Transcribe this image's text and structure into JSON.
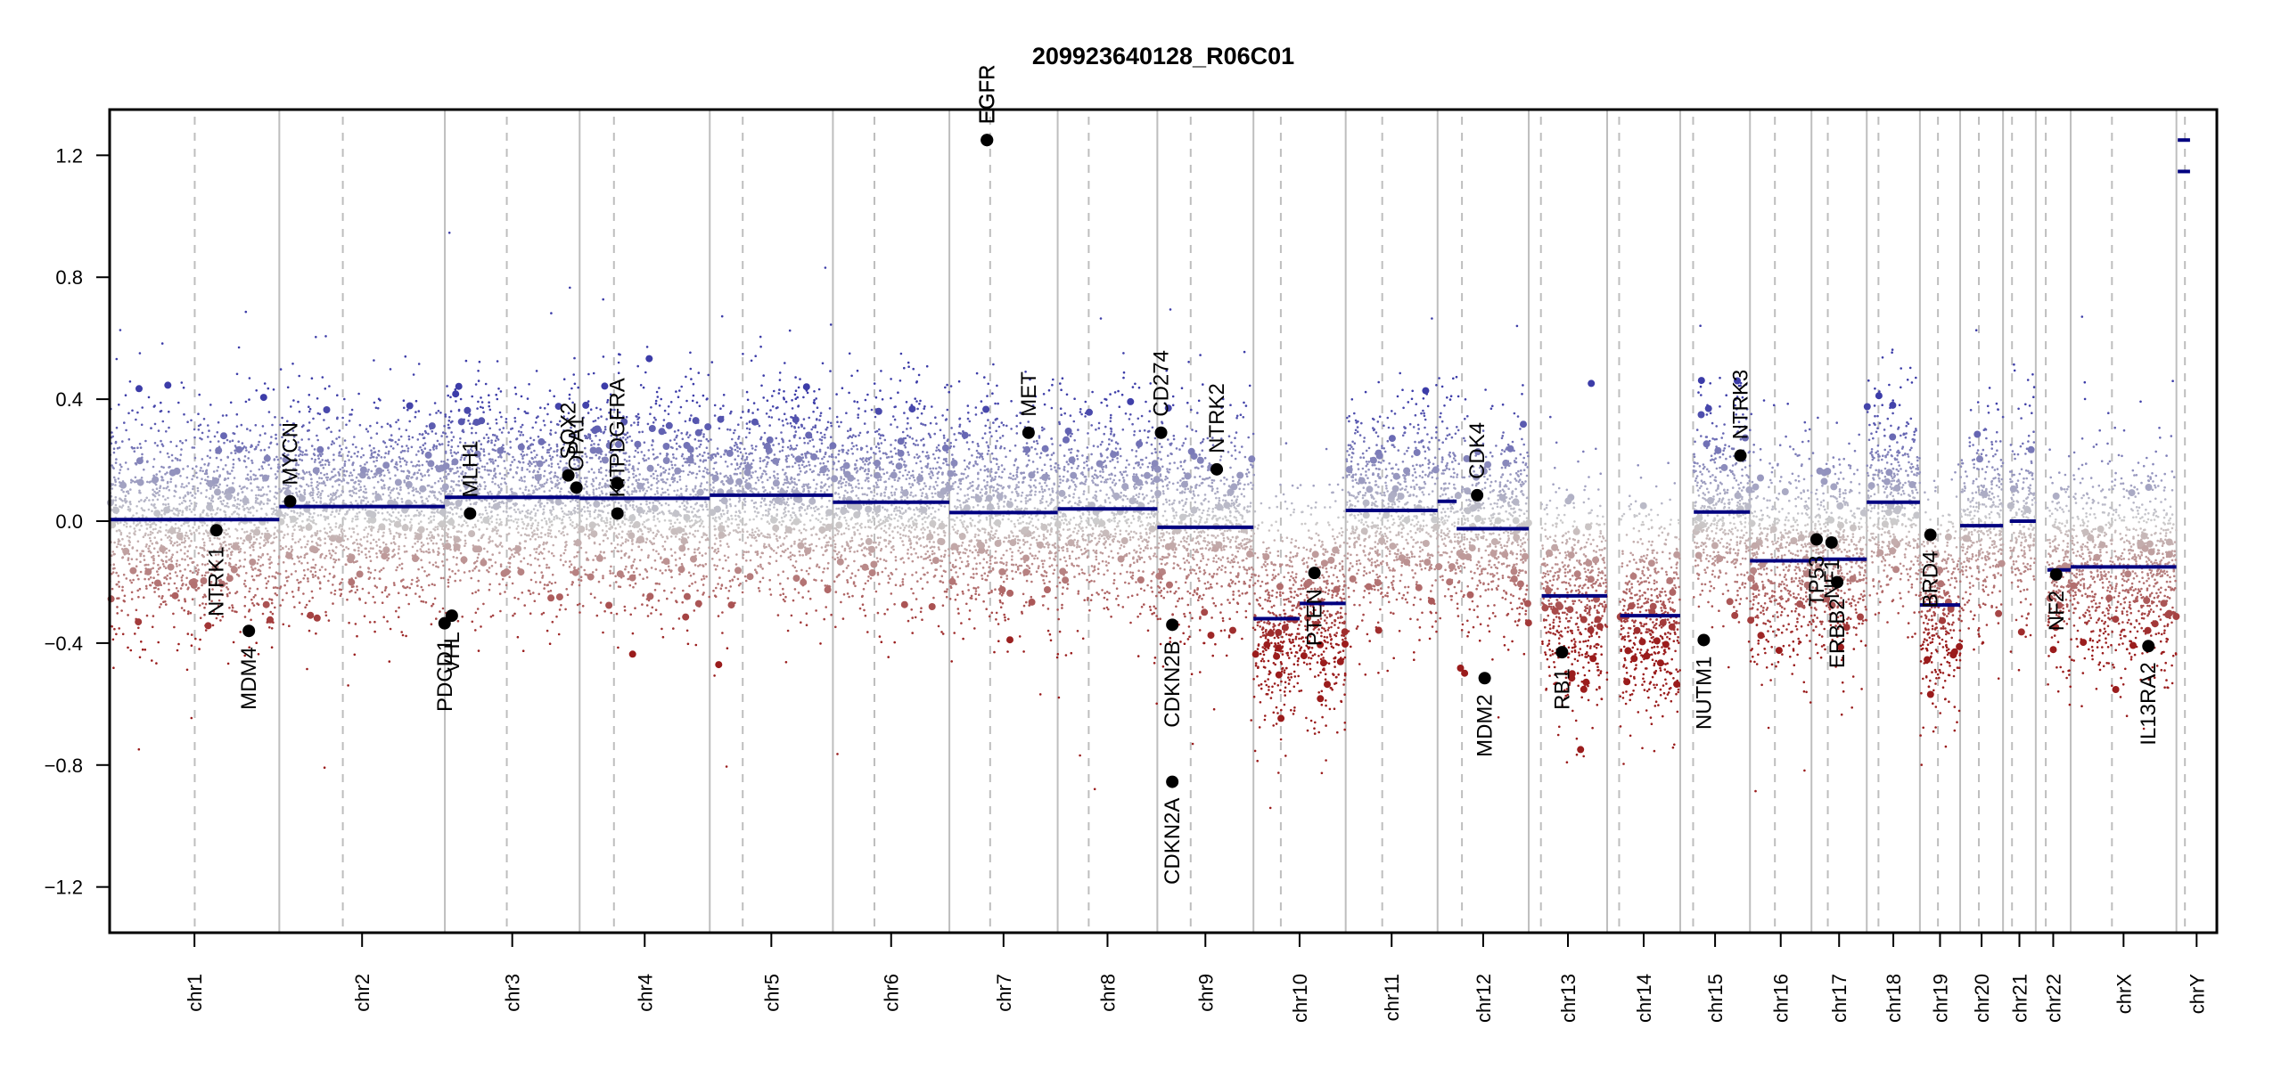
{
  "chart_data": {
    "type": "scatter",
    "title": "209923640128_R06C01",
    "xlabel": "",
    "ylabel": "",
    "ylim": [
      -1.35,
      1.35
    ],
    "y_ticks": [
      1.2,
      0.8,
      0.4,
      0.0,
      -0.4,
      -0.8,
      -1.2
    ],
    "y_tick_labels": [
      "1.2",
      "0.8",
      "0.4",
      "0.0",
      "−0.4",
      "−0.8",
      "−1.2"
    ],
    "grid": false,
    "x_unit": "Mb",
    "chromosomes": [
      {
        "name": "chr1",
        "length": 249.25,
        "centromere": 125.0
      },
      {
        "name": "chr2",
        "length": 243.2,
        "centromere": 93.3
      },
      {
        "name": "chr3",
        "length": 198.0,
        "centromere": 91.0
      },
      {
        "name": "chr4",
        "length": 191.15,
        "centromere": 50.4
      },
      {
        "name": "chr5",
        "length": 180.9,
        "centromere": 48.4
      },
      {
        "name": "chr6",
        "length": 171.1,
        "centromere": 61.0
      },
      {
        "name": "chr7",
        "length": 159.1,
        "centromere": 59.9
      },
      {
        "name": "chr8",
        "length": 146.4,
        "centromere": 45.6
      },
      {
        "name": "chr9",
        "length": 141.2,
        "centromere": 49.0
      },
      {
        "name": "chr10",
        "length": 135.5,
        "centromere": 40.2
      },
      {
        "name": "chr11",
        "length": 135.0,
        "centromere": 53.7
      },
      {
        "name": "chr12",
        "length": 133.9,
        "centromere": 35.8
      },
      {
        "name": "chr13",
        "length": 115.2,
        "centromere": 17.9
      },
      {
        "name": "chr14",
        "length": 107.3,
        "centromere": 17.6
      },
      {
        "name": "chr15",
        "length": 102.5,
        "centromere": 19.0
      },
      {
        "name": "chr16",
        "length": 90.35,
        "centromere": 36.6
      },
      {
        "name": "chr17",
        "length": 81.2,
        "centromere": 24.0
      },
      {
        "name": "chr18",
        "length": 78.1,
        "centromere": 17.2
      },
      {
        "name": "chr19",
        "length": 59.1,
        "centromere": 26.5
      },
      {
        "name": "chr20",
        "length": 63.0,
        "centromere": 27.5
      },
      {
        "name": "chr21",
        "length": 48.1,
        "centromere": 13.2
      },
      {
        "name": "chr22",
        "length": 51.3,
        "centromere": 14.7
      },
      {
        "name": "chrX",
        "length": 155.3,
        "centromere": 60.6
      },
      {
        "name": "chrY",
        "length": 59.4,
        "centromere": 12.5
      }
    ],
    "segments": [
      {
        "chr": "chr1",
        "start": 0,
        "end": 249.25,
        "value": 0.005
      },
      {
        "chr": "chr2",
        "start": 0,
        "end": 243.2,
        "value": 0.048
      },
      {
        "chr": "chr3",
        "start": 0,
        "end": 198.0,
        "value": 0.078
      },
      {
        "chr": "chr4",
        "start": 0,
        "end": 191.15,
        "value": 0.075
      },
      {
        "chr": "chr5",
        "start": 0,
        "end": 180.9,
        "value": 0.085
      },
      {
        "chr": "chr6",
        "start": 0,
        "end": 171.1,
        "value": 0.062
      },
      {
        "chr": "chr7",
        "start": 0,
        "end": 159.1,
        "value": 0.028
      },
      {
        "chr": "chr8",
        "start": 0,
        "end": 146.4,
        "value": 0.04
      },
      {
        "chr": "chr9",
        "start": 0,
        "end": 141.2,
        "value": -0.02
      },
      {
        "chr": "chr10",
        "start": 0,
        "end": 68.0,
        "value": -0.32
      },
      {
        "chr": "chr10",
        "start": 68.0,
        "end": 135.5,
        "value": -0.27
      },
      {
        "chr": "chr11",
        "start": 0,
        "end": 135.0,
        "value": 0.035
      },
      {
        "chr": "chr12",
        "start": 0,
        "end": 28.0,
        "value": 0.065
      },
      {
        "chr": "chr12",
        "start": 28.0,
        "end": 133.9,
        "value": -0.025
      },
      {
        "chr": "chr13",
        "start": 19.0,
        "end": 115.2,
        "value": -0.245
      },
      {
        "chr": "chr14",
        "start": 19.0,
        "end": 107.3,
        "value": -0.31
      },
      {
        "chr": "chr15",
        "start": 20.0,
        "end": 102.5,
        "value": 0.03
      },
      {
        "chr": "chr16",
        "start": 0,
        "end": 90.35,
        "value": -0.13
      },
      {
        "chr": "chr17",
        "start": 0,
        "end": 81.2,
        "value": -0.125
      },
      {
        "chr": "chr18",
        "start": 0,
        "end": 78.1,
        "value": 0.062
      },
      {
        "chr": "chr19",
        "start": 0,
        "end": 59.1,
        "value": -0.275
      },
      {
        "chr": "chr20",
        "start": 0,
        "end": 63.0,
        "value": -0.015
      },
      {
        "chr": "chr21",
        "start": 10.0,
        "end": 48.1,
        "value": 0.0
      },
      {
        "chr": "chr22",
        "start": 17.0,
        "end": 51.3,
        "value": -0.16
      },
      {
        "chrX": true,
        "chr": "chrX",
        "start": 0,
        "end": 155.3,
        "value": -0.15
      },
      {
        "chr": "chrY",
        "start": 2.0,
        "end": 20.0,
        "value": 1.25
      },
      {
        "chr": "chrY",
        "start": 2.0,
        "end": 20.0,
        "value": 1.147
      }
    ],
    "genes": [
      {
        "name": "NTRK1",
        "chr": "chr1",
        "pos": 156.8,
        "value": -0.03
      },
      {
        "name": "MDM4",
        "chr": "chr1",
        "pos": 204.5,
        "value": -0.36
      },
      {
        "name": "MYCN",
        "chr": "chr2",
        "pos": 15.9,
        "value": 0.065
      },
      {
        "name": "PDCD1",
        "chr": "chr2",
        "pos": 242.8,
        "value": -0.335
      },
      {
        "name": "VHL",
        "chr": "chr3",
        "pos": 10.2,
        "value": -0.31
      },
      {
        "name": "MLH1",
        "chr": "chr3",
        "pos": 37.0,
        "value": 0.025
      },
      {
        "name": "SOX2",
        "chr": "chr3",
        "pos": 181.4,
        "value": 0.15
      },
      {
        "name": "OPA1",
        "chr": "chr3",
        "pos": 193.3,
        "value": 0.11
      },
      {
        "name": "PDGFRA",
        "chr": "chr4",
        "pos": 55.1,
        "value": 0.125
      },
      {
        "name": "KIT",
        "chr": "chr4",
        "pos": 55.5,
        "value": 0.025
      },
      {
        "name": "EGFR",
        "chr": "chr7",
        "pos": 55.1,
        "value": 1.25
      },
      {
        "name": "EGFR",
        "chr": "chr7",
        "pos": 55.3,
        "value": 1.25
      },
      {
        "name": "MET",
        "chr": "chr7",
        "pos": 116.3,
        "value": 0.29
      },
      {
        "name": "CD274",
        "chr": "chr9",
        "pos": 5.45,
        "value": 0.29
      },
      {
        "name": "CDKN2A",
        "chr": "chr9",
        "pos": 21.97,
        "value": -0.855
      },
      {
        "name": "CDKN2B",
        "chr": "chr9",
        "pos": 22.0,
        "value": -0.34
      },
      {
        "name": "NTRK2",
        "chr": "chr9",
        "pos": 87.3,
        "value": 0.17
      },
      {
        "name": "PTEN",
        "chr": "chr10",
        "pos": 89.6,
        "value": -0.17
      },
      {
        "name": "CDK4",
        "chr": "chr12",
        "pos": 58.1,
        "value": 0.085
      },
      {
        "name": "MDM2",
        "chr": "chr12",
        "pos": 69.2,
        "value": -0.515
      },
      {
        "name": "RB1",
        "chr": "chr13",
        "pos": 48.9,
        "value": -0.43
      },
      {
        "name": "NUTM1",
        "chr": "chr15",
        "pos": 34.6,
        "value": -0.39
      },
      {
        "name": "NTRK3",
        "chr": "chr15",
        "pos": 88.5,
        "value": 0.215
      },
      {
        "name": "TP53",
        "chr": "chr17",
        "pos": 7.5,
        "value": -0.06
      },
      {
        "name": "NF1",
        "chr": "chr17",
        "pos": 29.5,
        "value": -0.07
      },
      {
        "name": "ERBB2",
        "chr": "chr17",
        "pos": 37.8,
        "value": -0.2
      },
      {
        "name": "BRD4",
        "chr": "chr19",
        "pos": 15.4,
        "value": -0.045
      },
      {
        "name": "NF2",
        "chr": "chr22",
        "pos": 30.0,
        "value": -0.175
      },
      {
        "name": "IL13RA2",
        "chr": "chrX",
        "pos": 114.2,
        "value": -0.41
      }
    ],
    "colors": {
      "gain": "#3c3ca8",
      "neutral": "#cccccc",
      "loss": "#9a1c1c",
      "segment": "#000080",
      "gene_point": "#000000",
      "chr_boundary": "#bebebe",
      "centromere": "#bebebe"
    }
  }
}
